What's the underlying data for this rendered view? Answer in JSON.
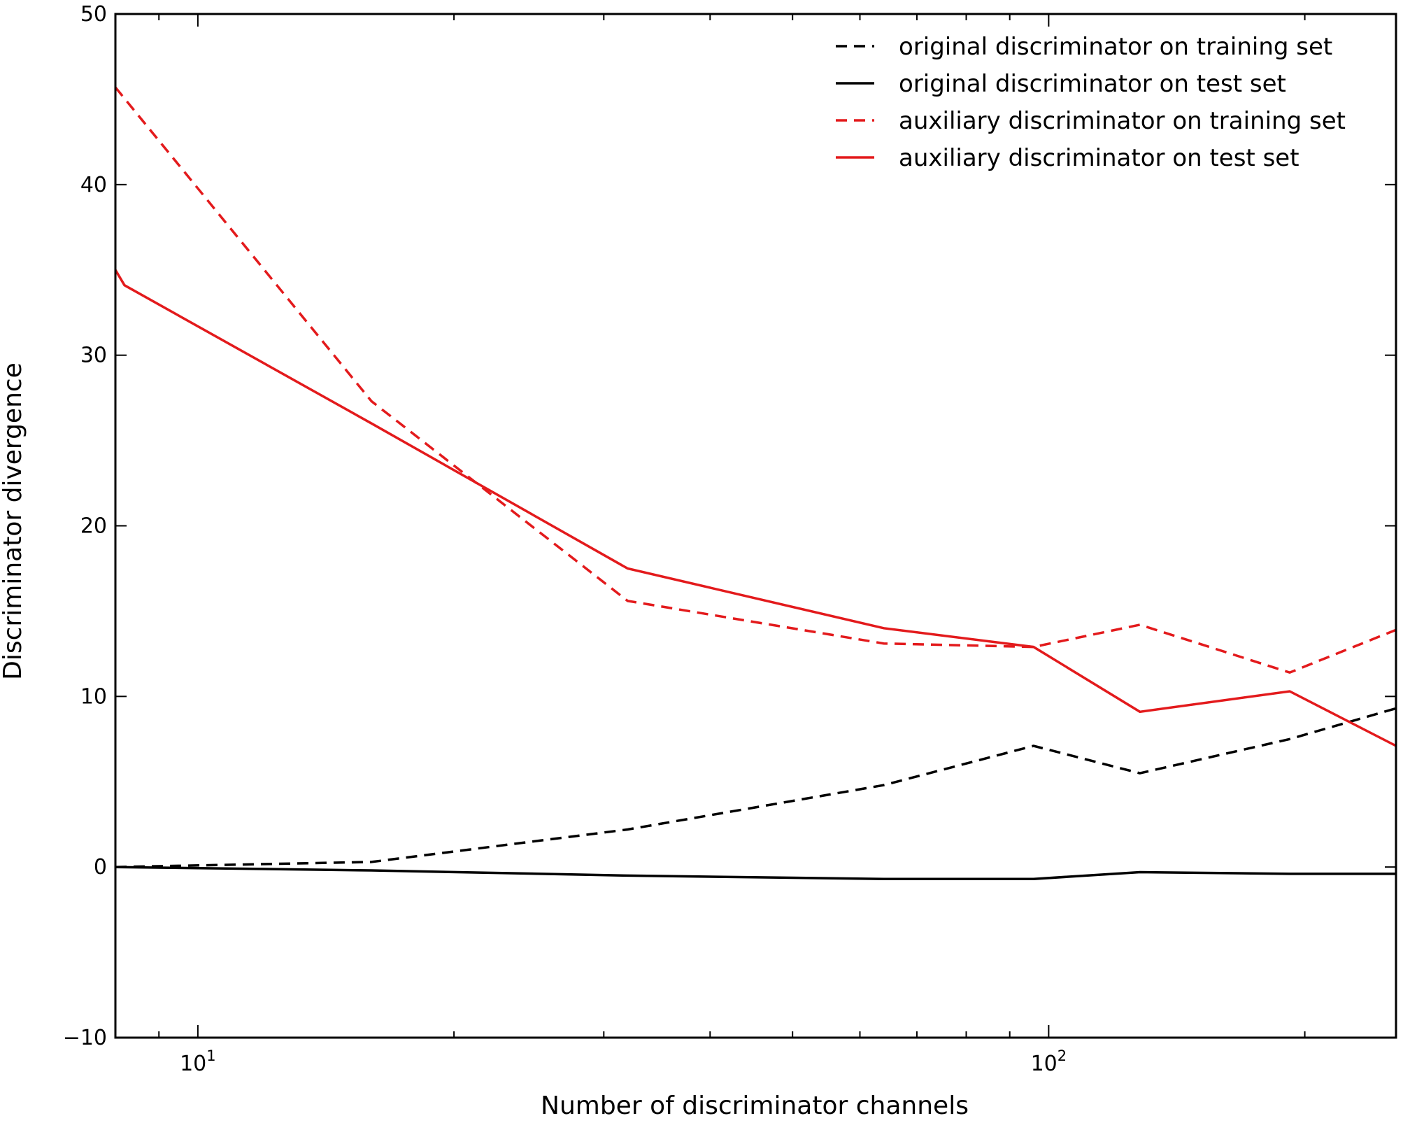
{
  "chart_data": {
    "type": "line",
    "xlabel": "Number of discriminator channels",
    "ylabel": "Discriminator divergence",
    "xscale": "log",
    "xlim": [
      8,
      256
    ],
    "ylim": [
      -10,
      50
    ],
    "y_ticks": [
      -10,
      0,
      10,
      20,
      30,
      40,
      50
    ],
    "y_tick_labels": [
      "−10",
      "0",
      "10",
      "20",
      "30",
      "40",
      "50"
    ],
    "x_major_ticks": [
      10,
      100
    ],
    "x_tick_labels": [
      {
        "base": "10",
        "exp": "1"
      },
      {
        "base": "10",
        "exp": "2"
      }
    ],
    "x_minor_ticks": [
      8,
      9,
      20,
      30,
      40,
      50,
      60,
      70,
      80,
      90,
      200
    ],
    "grid": false,
    "legend": "top-right",
    "series": [
      {
        "name": "original discriminator on training set",
        "color": "#000000",
        "style": "dashed",
        "x": [
          8,
          16,
          32,
          64,
          96,
          128,
          192,
          256
        ],
        "y": [
          0.0,
          0.3,
          2.2,
          4.8,
          7.1,
          5.5,
          7.5,
          9.3
        ]
      },
      {
        "name": "original discriminator on test set",
        "color": "#000000",
        "style": "solid",
        "x": [
          8,
          16,
          32,
          64,
          96,
          128,
          192,
          256
        ],
        "y": [
          0.0,
          -0.2,
          -0.5,
          -0.7,
          -0.7,
          -0.3,
          -0.4,
          -0.4
        ]
      },
      {
        "name": "auxiliary discriminator on training set",
        "color": "#e31a1c",
        "style": "dashed",
        "x": [
          8,
          16,
          32,
          64,
          96,
          128,
          192,
          256
        ],
        "y": [
          45.7,
          27.3,
          15.6,
          13.1,
          12.9,
          14.2,
          11.4,
          13.9
        ]
      },
      {
        "name": "auxiliary discriminator on test set",
        "color": "#e31a1c",
        "style": "solid",
        "x": [
          8,
          8.2,
          16,
          32,
          64,
          96,
          128,
          192,
          256
        ],
        "y": [
          35.0,
          34.1,
          26.0,
          17.5,
          14.0,
          12.9,
          9.1,
          10.3,
          7.1
        ]
      }
    ]
  }
}
